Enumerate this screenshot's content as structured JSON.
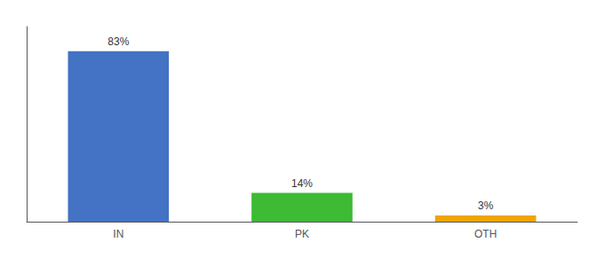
{
  "chart_data": {
    "type": "bar",
    "categories": [
      "IN",
      "PK",
      "OTH"
    ],
    "values": [
      83,
      14,
      3
    ],
    "value_labels": [
      "83%",
      "14%",
      "3%"
    ],
    "data_labels": true,
    "colors": [
      "#4472c4",
      "#3dbb35",
      "#f0a500"
    ],
    "ylim": [
      0,
      95
    ],
    "yticks": [],
    "grid": false,
    "tick_labels": "x"
  }
}
